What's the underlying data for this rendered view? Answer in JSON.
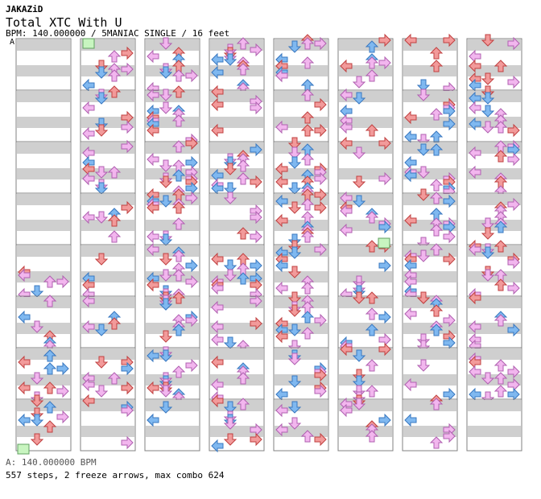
{
  "song": {
    "artist": "JAKAZiD",
    "title": "Total XTC With U",
    "bpm_line": "BPM: 140.000000 / 5MANIAC SINGLE / 16 feet"
  },
  "chart_markers": {
    "bpm_marker": "A"
  },
  "footer": {
    "bpm_legend": "A: 140.000000 BPM",
    "stats": "557 steps, 2 freeze arrows, max combo 624"
  },
  "colors": {
    "band": "#cfcfcf",
    "quarter": "#f29a9a",
    "quarter_edge": "#c04040",
    "eighth": "#7fb8f0",
    "eighth_edge": "#3a78c0",
    "sixteenth": "#f2b6ee",
    "sixteenth_edge": "#b060b0",
    "freeze": "#c8f5c0"
  },
  "chart_data": {
    "type": "table",
    "layout": "stepchart",
    "columns_count": 8,
    "measures_per_column": 8,
    "total_measures": 63,
    "lanes": [
      "left",
      "down",
      "up",
      "right"
    ],
    "density": [
      0,
      0,
      0,
      0,
      2,
      3,
      3,
      3,
      4,
      4,
      3,
      4,
      4,
      3,
      4,
      4,
      5,
      5,
      5,
      5,
      5,
      5,
      5,
      2,
      4,
      4,
      4,
      4,
      4,
      4,
      4,
      4,
      5,
      5,
      5,
      5,
      4,
      4,
      4,
      4,
      4,
      4,
      4,
      5,
      5,
      4,
      4,
      4,
      5,
      5,
      5,
      5,
      4,
      4,
      3,
      3,
      5,
      5,
      4,
      4,
      5,
      5,
      5
    ]
  }
}
